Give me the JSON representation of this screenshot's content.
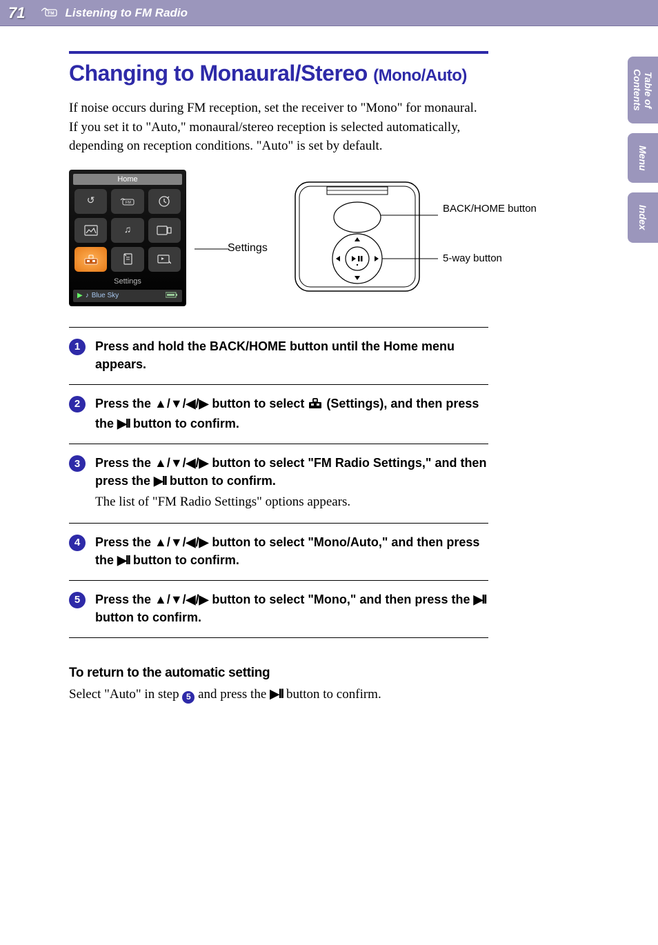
{
  "header": {
    "page_number": "71",
    "section_title": "Listening to FM Radio"
  },
  "side_tabs": {
    "toc_line1": "Table of",
    "toc_line2": "Contents",
    "menu": "Menu",
    "index": "Index"
  },
  "title": {
    "main": "Changing to Monaural/Stereo ",
    "sub": "(Mono/Auto)"
  },
  "intro": "If noise occurs during FM reception, set the receiver to \"Mono\" for monaural. If you set it to \"Auto,\" monaural/stereo reception is selected automatically, depending on reception conditions. \"Auto\" is set by default.",
  "figure": {
    "screen_home_label": "Home",
    "screen_settings_label": "Settings",
    "now_playing_track": "Blue Sky",
    "callout_settings": "Settings",
    "callout_back": "BACK/HOME button",
    "callout_5way": "5-way button"
  },
  "steps": [
    {
      "num": "1",
      "instr_parts": [
        "Press and hold the BACK/HOME button until the Home menu appears."
      ],
      "note": ""
    },
    {
      "num": "2",
      "instr_parts": [
        "Press the ",
        "▲/▼/◀/▶",
        " button to select ",
        "TOOLBOX",
        " (Settings), and then press the ",
        "PLAYPAUSE",
        " button to confirm."
      ],
      "note": ""
    },
    {
      "num": "3",
      "instr_parts": [
        "Press the ",
        "▲/▼/◀/▶",
        " button to select \"FM Radio Settings,\" and then press the ",
        "PLAYPAUSE",
        " button to confirm."
      ],
      "note": "The list of \"FM Radio Settings\" options appears."
    },
    {
      "num": "4",
      "instr_parts": [
        "Press the ",
        "▲/▼/◀/▶",
        " button to select \"Mono/Auto,\" and then press the ",
        "PLAYPAUSE",
        " button to confirm."
      ],
      "note": ""
    },
    {
      "num": "5",
      "instr_parts": [
        "Press the ",
        "▲/▼/◀/▶",
        " button to select \"Mono,\" and then press the ",
        "PLAYPAUSE",
        " button to confirm."
      ],
      "note": ""
    }
  ],
  "return_section": {
    "heading": "To return to the automatic setting",
    "text_before": "Select \"Auto\" in step ",
    "badge": "5",
    "text_mid": " and press the ",
    "text_after": " button to confirm."
  },
  "colors": {
    "accent": "#2e2aa8",
    "header_bg": "#9b96bc"
  }
}
